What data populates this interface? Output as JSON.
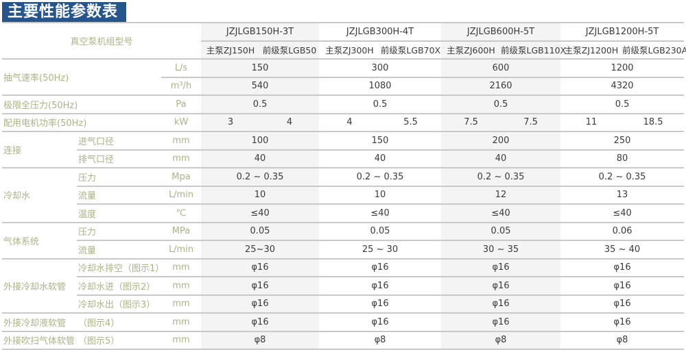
{
  "title": "主要性能参数表",
  "header": {
    "label": "真空泵机组型号",
    "models": [
      {
        "name": "JZJLGB150H-3T",
        "main": "主泵ZJ150H",
        "fore": "前级泵LGB50"
      },
      {
        "name": "JZJLGB300H-4T",
        "main": "主泵ZJ300H",
        "fore": "前级泵LGB70X"
      },
      {
        "name": "JZJLGB600H-5T",
        "main": "主泵ZJ600H",
        "fore": "前级泵LGB110X"
      },
      {
        "name": "JZJLGB1200H-5T",
        "main": "主泵ZJ1200H",
        "fore": "前级泵LGB230A"
      }
    ]
  },
  "rows": [
    {
      "group": "抽气速率(50Hz)",
      "span": 2,
      "wide": true,
      "unit": "L/s",
      "values": [
        "150",
        "300",
        "600",
        "1200"
      ]
    },
    {
      "unit": "m³/h",
      "values": [
        "540",
        "1080",
        "2160",
        "4320"
      ]
    },
    {
      "group": "极限全压力(50Hz)",
      "span": 1,
      "wide": true,
      "unit": "Pa",
      "values": [
        "0.5",
        "0.5",
        "0.5",
        "0.5"
      ]
    },
    {
      "group": "配用电机功率(50Hz)",
      "span": 1,
      "wide": true,
      "unit": "kW",
      "split": [
        [
          "3",
          "4"
        ],
        [
          "4",
          "5.5"
        ],
        [
          "7.5",
          "7.5"
        ],
        [
          "11",
          "18.5"
        ]
      ]
    },
    {
      "group": "连接",
      "span": 2,
      "sub": "进气口径",
      "unit": "mm",
      "values": [
        "100",
        "150",
        "200",
        "250"
      ]
    },
    {
      "sub": "排气口径",
      "unit": "mm",
      "values": [
        "40",
        "40",
        "40",
        "80"
      ]
    },
    {
      "group": "冷却水",
      "span": 3,
      "sub": "压力",
      "unit": "Mpa",
      "values": [
        "0.2 ~ 0.35",
        "0.2 ~ 0.35",
        "0.2 ~ 0.35",
        "0.2 ~ 0.35"
      ]
    },
    {
      "sub": "流量",
      "unit": "L/min",
      "values": [
        "10",
        "10",
        "12",
        "13"
      ]
    },
    {
      "sub": "温度",
      "unit": "℃",
      "values": [
        "≤40",
        "≤40",
        "≤40",
        "≤40"
      ]
    },
    {
      "group": "气体系统",
      "span": 2,
      "sub": "压力",
      "unit": "MPa",
      "values": [
        "0.05",
        "0.05",
        "0.05",
        "0.06"
      ]
    },
    {
      "sub": "流量",
      "unit": "L/min",
      "values": [
        "25~30",
        "25 ~ 30",
        "30 ~ 35",
        "35 ~ 40"
      ]
    },
    {
      "group": "外接冷却水软管",
      "span": 3,
      "sub": "冷却水排空（图示1）",
      "unit": "mm",
      "values": [
        "φ16",
        "φ16",
        "φ16",
        "φ16"
      ]
    },
    {
      "sub": "冷却水进（图示2）",
      "unit": "mm",
      "values": [
        "φ16",
        "φ16",
        "φ16",
        "φ16"
      ]
    },
    {
      "sub": "冷却水出（图示3）",
      "unit": "mm",
      "values": [
        "φ16",
        "φ16",
        "φ16",
        "φ16"
      ]
    },
    {
      "group": "外接冷却液软管",
      "span": 1,
      "sub": "（图示4）",
      "unit": "mm",
      "values": [
        "φ16",
        "φ16",
        "φ16",
        "φ16"
      ]
    },
    {
      "group": "外接吹扫气体软管",
      "span": 1,
      "sub": "（图示5）",
      "unit": "mm",
      "values": [
        "φ8",
        "φ8",
        "φ8",
        "φ8"
      ]
    }
  ]
}
